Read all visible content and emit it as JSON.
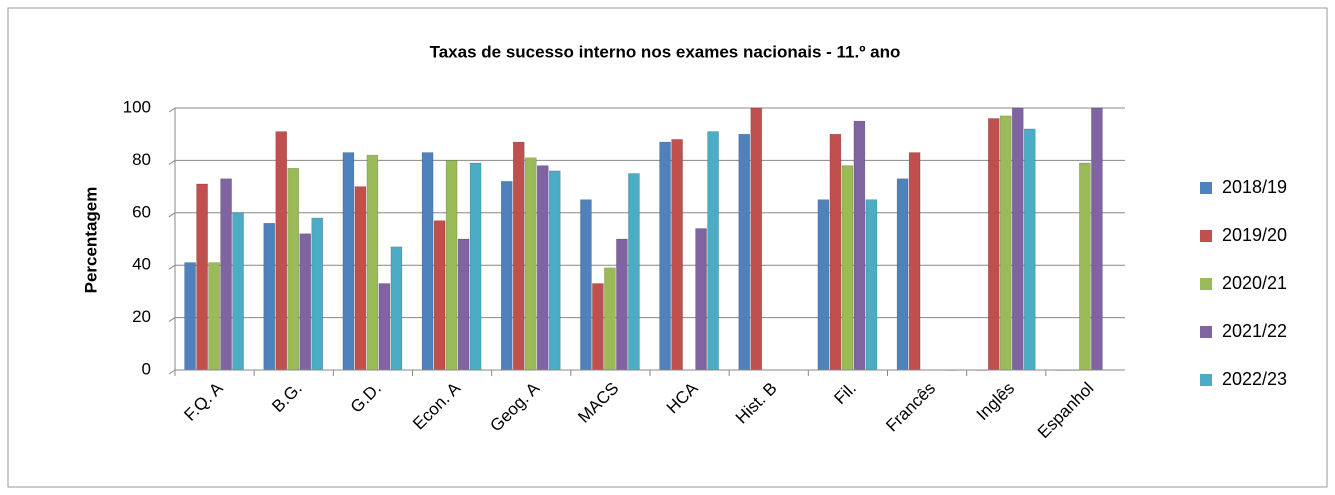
{
  "chart_data": {
    "type": "bar",
    "title": "Taxas de sucesso  interno nos exames nacionais   - 11.º ano",
    "y_label": "Percentagem",
    "categories": [
      "F.Q. A",
      "B.G.",
      "G.D.",
      "Econ. A",
      "Geog. A",
      "MACS",
      "HCA",
      "Hist. B",
      "Fil.",
      "Francês",
      "Inglês",
      "Espanhol"
    ],
    "series": [
      {
        "name": "2018/19",
        "color": "#4f81bd",
        "values": [
          41,
          56,
          83,
          83,
          72,
          65,
          87,
          90,
          65,
          73,
          0,
          0
        ]
      },
      {
        "name": "2019/20",
        "color": "#c0504d",
        "values": [
          71,
          91,
          70,
          57,
          87,
          33,
          88,
          100,
          90,
          83,
          96,
          0
        ]
      },
      {
        "name": "2020/21",
        "color": "#9bbb59",
        "values": [
          41,
          77,
          82,
          80,
          81,
          39,
          null,
          null,
          78,
          null,
          97,
          79
        ]
      },
      {
        "name": "2021/22",
        "color": "#8064a2",
        "values": [
          73,
          52,
          33,
          50,
          78,
          50,
          54,
          null,
          95,
          null,
          100,
          100
        ]
      },
      {
        "name": "2022/23",
        "color": "#4bacc6",
        "values": [
          60,
          58,
          47,
          79,
          76,
          75,
          91,
          null,
          65,
          0,
          92,
          null
        ]
      }
    ],
    "ylim": [
      0,
      100
    ],
    "yticks": [
      0,
      20,
      40,
      60,
      80,
      100
    ],
    "grid": true,
    "legend": "right"
  }
}
